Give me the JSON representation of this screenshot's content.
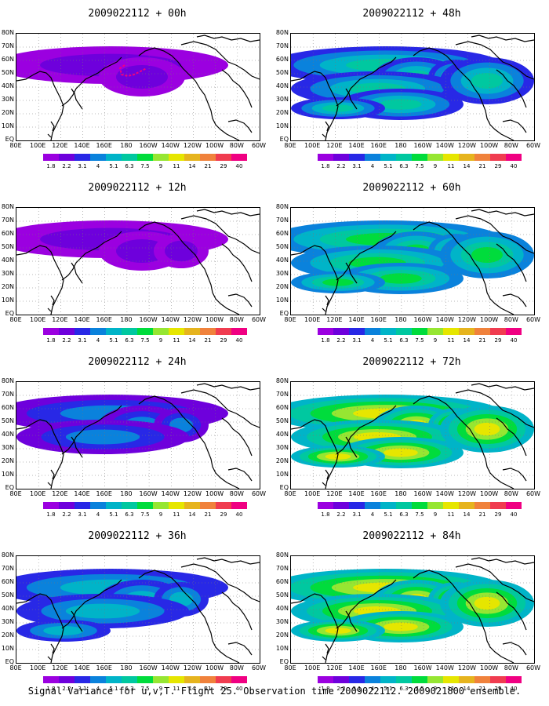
{
  "caption": "Signal Variance for u,v,T. Flight 25. Observation time 2009022112. 2009021800 ensemble.",
  "lat_labels": [
    "80N",
    "70N",
    "60N",
    "50N",
    "40N",
    "30N",
    "20N",
    "10N",
    "EQ"
  ],
  "lon_labels": [
    "80E",
    "100E",
    "120E",
    "140E",
    "160E",
    "180",
    "160W",
    "140W",
    "120W",
    "100W",
    "80W",
    "60W"
  ],
  "colorbar": {
    "labels": [
      "1.8",
      "2.2",
      "3.1",
      "4",
      "5.1",
      "6.3",
      "7.5",
      "9",
      "11",
      "14",
      "21",
      "29",
      "40"
    ],
    "colors": [
      "#9B00E0",
      "#6E00DC",
      "#2828E6",
      "#0A82DC",
      "#00B4C8",
      "#00C8A0",
      "#00DC3C",
      "#96E632",
      "#E6E600",
      "#E6B41E",
      "#F0823C",
      "#F03C50",
      "#F00082"
    ]
  },
  "panels": [
    {
      "title": "2009022112 + 00h",
      "level": 0
    },
    {
      "title": "2009022112 + 48h",
      "level": 4
    },
    {
      "title": "2009022112 + 12h",
      "level": 1
    },
    {
      "title": "2009022112 + 60h",
      "level": 5
    },
    {
      "title": "2009022112 + 24h",
      "level": 2
    },
    {
      "title": "2009022112 + 72h",
      "level": 6
    },
    {
      "title": "2009022112 + 36h",
      "level": 3
    },
    {
      "title": "2009022112 + 84h",
      "level": 7
    }
  ]
}
